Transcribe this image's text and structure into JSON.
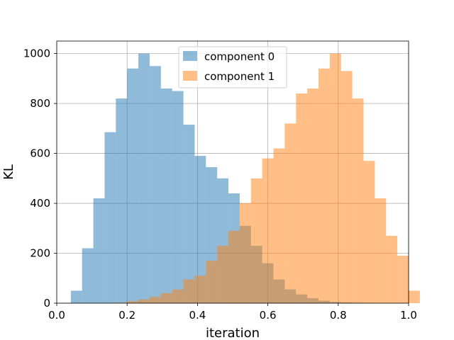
{
  "chart_data": {
    "type": "bar",
    "xlabel": "iteration",
    "ylabel": "KL",
    "xlim": [
      0.0,
      1.0
    ],
    "ylim": [
      0,
      1050
    ],
    "xticks": [
      "0.0",
      "0.2",
      "0.4",
      "0.6",
      "0.8",
      "1.0"
    ],
    "yticks": [
      "0",
      "200",
      "400",
      "600",
      "800",
      "1000"
    ],
    "grid": true,
    "legend_position": "top-center",
    "series": [
      {
        "name": "component 0",
        "color": "#1f77b4",
        "alpha": 0.5,
        "bin_start": 0.04,
        "bin_width": 0.032,
        "values": [
          50,
          220,
          420,
          685,
          820,
          940,
          1000,
          950,
          860,
          850,
          715,
          590,
          545,
          500,
          440,
          310,
          230,
          160,
          95,
          55,
          35,
          20,
          10,
          5,
          3,
          2,
          1,
          0,
          0
        ]
      },
      {
        "name": "component 1",
        "color": "#ff7f0e",
        "alpha": 0.5,
        "bin_start": 0.04,
        "bin_width": 0.032,
        "values": [
          0,
          0,
          0,
          0,
          2,
          8,
          15,
          25,
          40,
          55,
          95,
          110,
          170,
          230,
          290,
          400,
          500,
          580,
          620,
          720,
          840,
          860,
          940,
          1000,
          930,
          820,
          570,
          420,
          270,
          190,
          50
        ]
      }
    ]
  }
}
